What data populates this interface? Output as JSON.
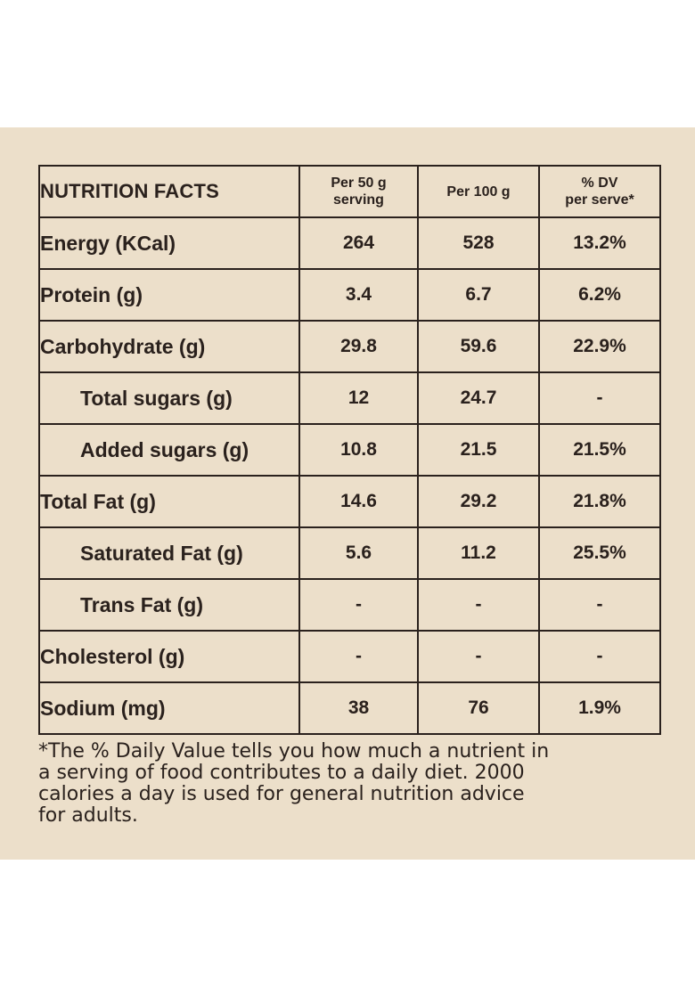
{
  "table": {
    "title": "NUTRITION FACTS",
    "col_per_serving_line1": "Per 50 g",
    "col_per_serving_line2": "serving",
    "col_per_100": "Per 100 g",
    "col_dv_line1": "% DV",
    "col_dv_line2": "per serve*",
    "rows": [
      {
        "label": "Energy (KCal)",
        "per_serving": "264",
        "per_100": "528",
        "dv": "13.2%"
      },
      {
        "label": "Protein (g)",
        "per_serving": "3.4",
        "per_100": "6.7",
        "dv": "6.2%"
      },
      {
        "label": "Carbohydrate (g)",
        "per_serving": "29.8",
        "per_100": "59.6",
        "dv": "22.9%"
      },
      {
        "label": "Total sugars (g)",
        "per_serving": "12",
        "per_100": "24.7",
        "dv": "-"
      },
      {
        "label": "Added sugars (g)",
        "per_serving": "10.8",
        "per_100": "21.5",
        "dv": "21.5%"
      },
      {
        "label": "Total Fat (g)",
        "per_serving": "14.6",
        "per_100": "29.2",
        "dv": "21.8%"
      },
      {
        "label": "Saturated Fat (g)",
        "per_serving": "5.6",
        "per_100": "11.2",
        "dv": "25.5%"
      },
      {
        "label": "Trans Fat (g)",
        "per_serving": "-",
        "per_100": "-",
        "dv": "-"
      },
      {
        "label": "Cholesterol (g)",
        "per_serving": "-",
        "per_100": "-",
        "dv": "-"
      },
      {
        "label": "Sodium (mg)",
        "per_serving": "38",
        "per_100": "76",
        "dv": "1.9%"
      }
    ]
  },
  "footnote": {
    "line1": "*The % Daily Value tells you how much a nutrient in",
    "line2": "a serving of food contributes to a daily diet. 2000",
    "line3": "calories a day is used for general nutrition advice",
    "line4": "for adults."
  },
  "colors": {
    "panel_background": "#ecdfca",
    "ink": "#2a211d"
  }
}
